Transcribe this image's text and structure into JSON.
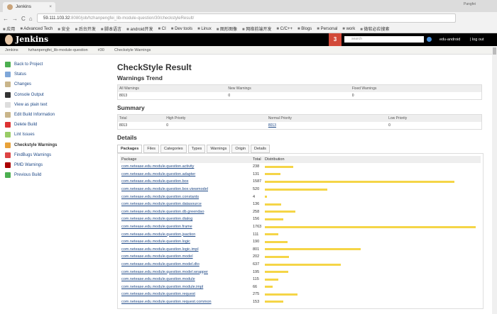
{
  "browser": {
    "tab_title": "Jenkins",
    "user": "Pangfei",
    "url_host": "59.111.103.32",
    "url_rest": ":8080/job/hzhanpengfei_lib-module-question/30/checkstyleResult/",
    "bookmarks": [
      "应用",
      "Advanced Tech",
      "安全",
      "后台开发",
      "脚本语言",
      "android开发",
      "CI",
      "Dev tools",
      "Linux",
      "图形图像",
      "网络前端开发",
      "C/C++",
      "Blogs",
      "Personal",
      "work",
      "微软必应搜索"
    ]
  },
  "header": {
    "logo": "Jenkins",
    "badge": "3",
    "search_placeholder": "search",
    "username": "edu-android",
    "logout": "| log out"
  },
  "breadcrumb": [
    "Jenkins",
    "hzhanpengfei_lib-module-question",
    "#30",
    "Checkstyle Warnings"
  ],
  "sidebar": [
    {
      "label": "Back to Project",
      "color": "#4caf50"
    },
    {
      "label": "Status",
      "color": "#7fa7d9"
    },
    {
      "label": "Changes",
      "color": "#c9b58a"
    },
    {
      "label": "Console Output",
      "color": "#333"
    },
    {
      "label": "View as plain text",
      "color": "#ddd"
    },
    {
      "label": "Edit Build Information",
      "color": "#c9b58a"
    },
    {
      "label": "Delete Build",
      "color": "#d33"
    },
    {
      "label": "Lint Issues",
      "color": "#9c6"
    },
    {
      "label": "Checkstyle Warnings",
      "color": "#e8a23a",
      "current": true
    },
    {
      "label": "FindBugs Warnings",
      "color": "#d44"
    },
    {
      "label": "PMD Warnings",
      "color": "#a00"
    },
    {
      "label": "Previous Build",
      "color": "#4caf50"
    }
  ],
  "main": {
    "title": "CheckStyle Result",
    "trend_title": "Warnings Trend",
    "trend": {
      "headers": [
        "All Warnings",
        "New Warnings",
        "Fixed Warnings"
      ],
      "values": [
        "8013",
        "0",
        "0"
      ]
    },
    "summary_title": "Summary",
    "summary": {
      "headers": [
        "Total",
        "High Priority",
        "Normal Priority",
        "Low Priority"
      ],
      "values": [
        "8013",
        "0",
        "8013",
        "0"
      ]
    },
    "details_title": "Details",
    "tabs": [
      "Packages",
      "Files",
      "Categories",
      "Types",
      "Warnings",
      "Origin",
      "Details"
    ],
    "table_headers": [
      "Package",
      "Total",
      "Distribution"
    ],
    "bar_color": "#f5d547",
    "rows": [
      [
        "com.netease.edu.module.question.activity",
        238
      ],
      [
        "com.netease.edu.module.question.adapter",
        131
      ],
      [
        "com.netease.edu.module.question.box",
        1587
      ],
      [
        "com.netease.edu.module.question.box.viewmodel",
        520
      ],
      [
        "com.netease.edu.module.question.constants",
        4
      ],
      [
        "com.netease.edu.module.question.datasource",
        136
      ],
      [
        "com.netease.edu.module.question.db.greendao",
        258
      ],
      [
        "com.netease.edu.module.question.dialog",
        156
      ],
      [
        "com.netease.edu.module.question.frame",
        1763
      ],
      [
        "com.netease.edu.module.question.jsaction",
        111
      ],
      [
        "com.netease.edu.module.question.logic",
        190
      ],
      [
        "com.netease.edu.module.question.logic.impl",
        801
      ],
      [
        "com.netease.edu.module.question.model",
        202
      ],
      [
        "com.netease.edu.module.question.model.dto",
        637
      ],
      [
        "com.netease.edu.module.question.model.wrapper",
        195
      ],
      [
        "com.netease.edu.module.question.module",
        115
      ],
      [
        "com.netease.edu.module.question.module.impl",
        66
      ],
      [
        "com.netease.edu.module.question.request",
        275
      ],
      [
        "com.netease.edu.module.question.request.common",
        153
      ]
    ]
  }
}
